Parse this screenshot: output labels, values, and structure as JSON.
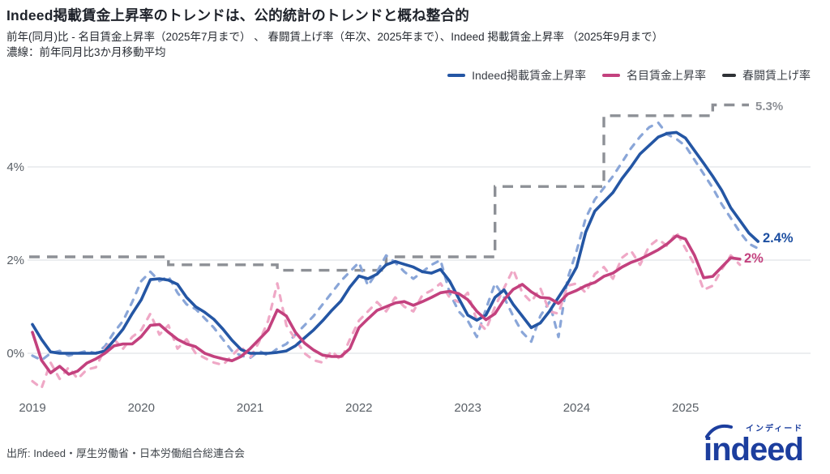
{
  "header": {
    "title": "Indeed掲載賃金上昇率のトレンドは、公的統計のトレンドと概ね整合的",
    "subtitle_line1": "前年(同月)比 - 名目賃金上昇率（2025年7月まで） 、 春闘賃上げ率（年次、2025年まで）、Indeed 掲載賃金上昇率 （2025年9月まで）",
    "subtitle_line2": "濃線：前年同月比3か月移動平均"
  },
  "legend": [
    {
      "label": "Indeed掲載賃金上昇率",
      "color": "#2456a4",
      "marker": "line"
    },
    {
      "label": "名目賃金上昇率",
      "color": "#c3417e",
      "marker": "line"
    },
    {
      "label": "春闘賃上げ率",
      "color": "#2f3236",
      "marker": "dash"
    }
  ],
  "footer": {
    "source": "出所: Indeed・厚生労働省・日本労働組合総連合会",
    "logo_text": "indeed",
    "logo_furigana": "インディード"
  },
  "chart_data": {
    "type": "line",
    "title": "Indeed掲載賃金上昇率のトレンドは、公的統計のトレンドと概ね整合的",
    "x_start_month": "2019-01",
    "x_tick_labels": [
      "2019",
      "2020",
      "2021",
      "2022",
      "2023",
      "2024",
      "2025"
    ],
    "y_tick_labels": [
      "0%",
      "2%",
      "4%"
    ],
    "y_tick_values": [
      0,
      2,
      4
    ],
    "ylim": [
      -0.9,
      5.6
    ],
    "grid": "horizontal-only",
    "legend_position": "top-right",
    "unit": "percent (前年同月比)",
    "series": [
      {
        "name": "Indeed掲載賃金上昇率（濃線・3か月移動平均）",
        "style": "solid",
        "color": "#2456a4",
        "width": 3.6,
        "monthly_values": [
          0.62,
          0.3,
          0.03,
          0.0,
          0.0,
          0.0,
          0.0,
          0.0,
          0.05,
          0.28,
          0.52,
          0.85,
          1.15,
          1.58,
          1.6,
          1.57,
          1.48,
          1.2,
          1.0,
          0.88,
          0.73,
          0.52,
          0.28,
          0.08,
          0.0,
          0.0,
          0.0,
          0.02,
          0.05,
          0.16,
          0.33,
          0.5,
          0.7,
          0.92,
          1.12,
          1.42,
          1.66,
          1.6,
          1.7,
          1.9,
          1.97,
          1.91,
          1.85,
          1.75,
          1.72,
          1.8,
          1.55,
          1.18,
          0.82,
          0.71,
          0.82,
          1.2,
          1.36,
          1.05,
          0.8,
          0.55,
          0.65,
          0.9,
          1.2,
          1.5,
          1.85,
          2.6,
          3.05,
          3.25,
          3.45,
          3.75,
          4.0,
          4.28,
          4.46,
          4.64,
          4.72,
          4.74,
          4.62,
          4.35,
          4.08,
          3.8,
          3.5,
          3.12,
          2.85,
          2.58,
          2.4
        ]
      },
      {
        "name": "Indeed掲載賃金上昇率（薄線・前年同月比）",
        "style": "dashed",
        "color": "#8aa6d8",
        "width": 3.2,
        "monthly_values": [
          -0.05,
          -0.15,
          0.0,
          0.05,
          -0.05,
          0.0,
          0.05,
          0.0,
          0.15,
          0.45,
          0.7,
          1.1,
          1.55,
          1.75,
          1.55,
          1.65,
          1.3,
          1.05,
          0.95,
          0.75,
          0.55,
          0.3,
          0.05,
          -0.05,
          -0.1,
          0.05,
          -0.05,
          0.1,
          0.2,
          0.4,
          0.6,
          0.8,
          1.05,
          1.3,
          1.55,
          1.75,
          1.95,
          1.45,
          1.75,
          2.1,
          1.95,
          1.75,
          1.6,
          1.75,
          1.9,
          2.0,
          1.3,
          0.9,
          0.7,
          0.35,
          0.95,
          1.5,
          1.2,
          0.8,
          0.45,
          0.25,
          0.8,
          1.1,
          0.35,
          1.6,
          2.2,
          2.9,
          3.3,
          3.55,
          3.8,
          4.1,
          4.4,
          4.65,
          4.85,
          4.95,
          4.7,
          4.6,
          4.45,
          4.15,
          3.85,
          3.55,
          3.2,
          2.9,
          2.6,
          2.35,
          2.25
        ]
      },
      {
        "name": "名目賃金上昇率（濃線・3か月移動平均）",
        "style": "solid",
        "color": "#c3417e",
        "width": 3.6,
        "monthly_values": [
          0.45,
          -0.15,
          -0.42,
          -0.28,
          -0.45,
          -0.38,
          -0.21,
          -0.12,
          0.0,
          0.16,
          0.2,
          0.2,
          0.36,
          0.6,
          0.62,
          0.45,
          0.3,
          0.2,
          0.14,
          0.0,
          -0.07,
          -0.12,
          -0.16,
          -0.07,
          0.1,
          0.3,
          0.5,
          0.93,
          0.8,
          0.45,
          0.22,
          0.07,
          -0.04,
          -0.07,
          -0.07,
          0.1,
          0.55,
          0.74,
          0.92,
          1.0,
          1.08,
          1.11,
          1.03,
          1.11,
          1.2,
          1.3,
          1.33,
          1.28,
          1.15,
          0.9,
          0.72,
          0.85,
          1.15,
          1.37,
          1.48,
          1.32,
          1.2,
          1.18,
          1.07,
          1.27,
          1.35,
          1.45,
          1.52,
          1.65,
          1.72,
          1.85,
          1.95,
          2.02,
          2.12,
          2.22,
          2.35,
          2.52,
          2.45,
          2.1,
          1.62,
          1.65,
          1.85,
          2.05,
          2.02
        ]
      },
      {
        "name": "名目賃金上昇率（薄線・前年同月比）",
        "style": "dashed",
        "color": "#efa8c6",
        "width": 3.2,
        "monthly_values": [
          -0.6,
          -0.75,
          -0.2,
          -0.55,
          -0.3,
          -0.55,
          -0.35,
          -0.3,
          0.1,
          0.3,
          0.1,
          0.35,
          0.5,
          0.85,
          0.4,
          0.6,
          0.1,
          0.3,
          0.0,
          -0.1,
          -0.2,
          -0.25,
          -0.05,
          0.15,
          -0.1,
          0.25,
          0.7,
          1.5,
          0.6,
          0.3,
          0.0,
          -0.15,
          -0.2,
          0.05,
          -0.15,
          0.3,
          0.7,
          0.9,
          1.1,
          0.9,
          1.2,
          1.0,
          0.9,
          1.25,
          1.35,
          1.5,
          1.2,
          1.1,
          1.3,
          0.7,
          0.5,
          1.0,
          1.4,
          1.8,
          1.3,
          1.1,
          1.4,
          0.9,
          0.85,
          1.45,
          1.5,
          1.3,
          1.7,
          1.85,
          1.6,
          2.05,
          2.2,
          1.9,
          2.3,
          2.45,
          2.3,
          2.6,
          2.25,
          1.9,
          1.36,
          1.45,
          1.8,
          2.1,
          1.9
        ]
      }
    ],
    "step_series": {
      "name": "春闘賃上げ率（年次）",
      "style": "step-dashed",
      "color": "#8d9096",
      "width": 3.4,
      "years": [
        2019,
        2020,
        2021,
        2022,
        2023,
        2024,
        2025
      ],
      "values": [
        2.07,
        1.9,
        1.78,
        2.07,
        3.58,
        5.1,
        5.33
      ]
    },
    "annotations": [
      {
        "text": "5.3%",
        "series": "春闘賃上げ率",
        "color": "#8d9096"
      },
      {
        "text": "2.4%",
        "series": "Indeed掲載賃金上昇率",
        "color": "#1d4fa1"
      },
      {
        "text": "2%",
        "series": "名目賃金上昇率",
        "color": "#c3417e"
      }
    ]
  }
}
